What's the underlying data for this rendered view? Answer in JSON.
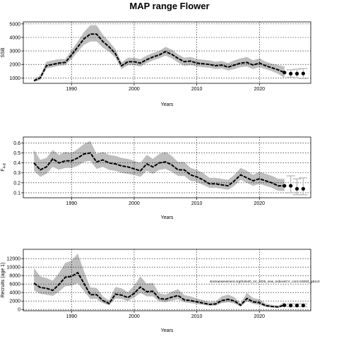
{
  "title": "MAP range Flower",
  "colors": {
    "band": "#bebebe",
    "line": "#000000",
    "grid": "#000000",
    "forecast": "#000000"
  },
  "annotation": "stockassessment.org/Sole20_24_2025_new_IndicesCV_cont.r19263_g81c0",
  "chart_data": [
    {
      "type": "line",
      "ylabel": "SSB",
      "xlabel": "Years",
      "xlim": [
        1982.3,
        2028.2
      ],
      "ylim": [
        600,
        5150
      ],
      "xticks": [
        1990,
        2000,
        2010,
        2020
      ],
      "yticks": [
        1000,
        2000,
        3000,
        4000,
        5000
      ],
      "grid": true,
      "x": [
        1984,
        1985,
        1986,
        1987,
        1988,
        1989,
        1990,
        1991,
        1992,
        1993,
        1994,
        1995,
        1996,
        1997,
        1998,
        1999,
        2000,
        2001,
        2002,
        2003,
        2004,
        2005,
        2006,
        2007,
        2008,
        2009,
        2010,
        2011,
        2012,
        2013,
        2014,
        2015,
        2016,
        2017,
        2018,
        2019,
        2020,
        2021,
        2022,
        2023,
        2024
      ],
      "series": [
        {
          "role": "estimate",
          "values": [
            800,
            1000,
            1900,
            2000,
            2100,
            2150,
            2700,
            3300,
            3900,
            4250,
            4250,
            3700,
            3300,
            2800,
            1900,
            2200,
            2200,
            2100,
            2350,
            2550,
            2700,
            2950,
            2750,
            2450,
            2200,
            2250,
            2100,
            2050,
            2000,
            1900,
            1950,
            1800,
            1950,
            2100,
            2150,
            1950,
            2100,
            1900,
            1750,
            1600,
            1400
          ]
        },
        {
          "role": "lower",
          "values": [
            700,
            850,
            1700,
            1800,
            1900,
            1950,
            2400,
            2950,
            3450,
            3700,
            3700,
            3250,
            2950,
            2500,
            1650,
            1950,
            1950,
            1850,
            2100,
            2300,
            2450,
            2650,
            2450,
            2150,
            1900,
            1950,
            1850,
            1800,
            1750,
            1650,
            1700,
            1550,
            1650,
            1800,
            1850,
            1650,
            1800,
            1650,
            1500,
            1300,
            1000
          ]
        },
        {
          "role": "upper",
          "values": [
            900,
            1200,
            2200,
            2300,
            2400,
            2400,
            3050,
            3700,
            4400,
            4900,
            4900,
            4200,
            3700,
            3150,
            2150,
            2500,
            2500,
            2400,
            2650,
            2850,
            3000,
            3300,
            3100,
            2750,
            2500,
            2550,
            2400,
            2350,
            2300,
            2200,
            2250,
            2100,
            2300,
            2450,
            2550,
            2300,
            2450,
            2200,
            2050,
            1950,
            1850
          ]
        },
        {
          "role": "forecast",
          "x": [
            2024,
            2025,
            2026,
            2027
          ],
          "values": [
            1400,
            1320,
            1320,
            1330
          ],
          "lower": [
            1300,
            1050,
            1000,
            950
          ],
          "upper": [
            1550,
            1600,
            1650,
            1700
          ]
        }
      ]
    },
    {
      "type": "line",
      "ylabel": "F",
      "ylabel_sub": "4-8",
      "xlabel": "Years",
      "xlim": [
        1982.3,
        2028.2
      ],
      "ylim": [
        0.05,
        0.66
      ],
      "xticks": [
        1990,
        2000,
        2010,
        2020
      ],
      "yticks": [
        0.1,
        0.2,
        0.3,
        0.4,
        0.5,
        0.6
      ],
      "grid": true,
      "x": [
        1984,
        1985,
        1986,
        1987,
        1988,
        1989,
        1990,
        1991,
        1992,
        1993,
        1994,
        1995,
        1996,
        1997,
        1998,
        1999,
        2000,
        2001,
        2002,
        2003,
        2004,
        2005,
        2006,
        2007,
        2008,
        2009,
        2010,
        2011,
        2012,
        2013,
        2014,
        2015,
        2016,
        2017,
        2018,
        2019,
        2020,
        2021,
        2022,
        2023,
        2024
      ],
      "series": [
        {
          "role": "estimate",
          "values": [
            0.4,
            0.33,
            0.36,
            0.44,
            0.4,
            0.42,
            0.42,
            0.45,
            0.49,
            0.5,
            0.41,
            0.43,
            0.4,
            0.39,
            0.37,
            0.36,
            0.34,
            0.32,
            0.39,
            0.36,
            0.4,
            0.41,
            0.38,
            0.33,
            0.33,
            0.28,
            0.26,
            0.23,
            0.19,
            0.19,
            0.18,
            0.17,
            0.22,
            0.28,
            0.25,
            0.22,
            0.24,
            0.22,
            0.2,
            0.17,
            0.17
          ]
        },
        {
          "role": "lower",
          "values": [
            0.32,
            0.26,
            0.29,
            0.36,
            0.33,
            0.35,
            0.35,
            0.37,
            0.41,
            0.42,
            0.34,
            0.36,
            0.33,
            0.32,
            0.3,
            0.29,
            0.28,
            0.26,
            0.32,
            0.29,
            0.33,
            0.34,
            0.31,
            0.27,
            0.27,
            0.22,
            0.21,
            0.18,
            0.15,
            0.15,
            0.14,
            0.13,
            0.17,
            0.23,
            0.2,
            0.17,
            0.19,
            0.17,
            0.15,
            0.12,
            0.12
          ]
        },
        {
          "role": "upper",
          "values": [
            0.53,
            0.43,
            0.45,
            0.53,
            0.48,
            0.51,
            0.5,
            0.54,
            0.59,
            0.62,
            0.49,
            0.51,
            0.48,
            0.47,
            0.45,
            0.44,
            0.42,
            0.4,
            0.48,
            0.44,
            0.49,
            0.51,
            0.47,
            0.41,
            0.41,
            0.35,
            0.33,
            0.3,
            0.25,
            0.25,
            0.24,
            0.23,
            0.28,
            0.35,
            0.32,
            0.28,
            0.31,
            0.29,
            0.27,
            0.24,
            0.24
          ]
        },
        {
          "role": "forecast",
          "x": [
            2024,
            2025,
            2026,
            2027
          ],
          "values": [
            0.17,
            0.17,
            0.14,
            0.14
          ],
          "lower": [
            0.13,
            0.1,
            0.08,
            0.08
          ],
          "upper": [
            0.22,
            0.27,
            0.24,
            0.25
          ]
        }
      ]
    },
    {
      "type": "line",
      "ylabel": "Recruits (age 1)",
      "xlabel": "Years",
      "xlim": [
        1982.3,
        2028.2
      ],
      "ylim": [
        -300,
        14200
      ],
      "xticks": [
        1990,
        2000,
        2010,
        2020
      ],
      "yticks": [
        0,
        2000,
        4000,
        6000,
        8000,
        10000,
        12000
      ],
      "grid": true,
      "x": [
        1984,
        1985,
        1986,
        1987,
        1988,
        1989,
        1990,
        1991,
        1992,
        1993,
        1994,
        1995,
        1996,
        1997,
        1998,
        1999,
        2000,
        2001,
        2002,
        2003,
        2004,
        2005,
        2006,
        2007,
        2008,
        2009,
        2010,
        2011,
        2012,
        2013,
        2014,
        2015,
        2016,
        2017,
        2018,
        2019,
        2020,
        2021,
        2022,
        2023,
        2024
      ],
      "series": [
        {
          "role": "estimate",
          "values": [
            6200,
            5200,
            5000,
            4500,
            5900,
            7600,
            7800,
            8700,
            6100,
            3500,
            3500,
            2100,
            1400,
            3600,
            3400,
            2800,
            3800,
            5300,
            4200,
            4300,
            2600,
            2400,
            2900,
            3300,
            2300,
            2100,
            1800,
            1500,
            1200,
            1300,
            2100,
            2400,
            2000,
            1000,
            2600,
            1800,
            1600,
            900,
            700,
            600,
            1000
          ]
        },
        {
          "role": "lower",
          "values": [
            4500,
            3700,
            3500,
            3200,
            4200,
            5500,
            5600,
            6200,
            4300,
            2500,
            2500,
            1500,
            1000,
            2600,
            2500,
            2000,
            2800,
            3900,
            3100,
            3100,
            1900,
            1700,
            2100,
            2400,
            1700,
            1500,
            1300,
            1100,
            900,
            900,
            1500,
            1700,
            1400,
            700,
            1900,
            1300,
            1100,
            600,
            500,
            400,
            700
          ]
        },
        {
          "role": "upper",
          "values": [
            9800,
            7800,
            7400,
            6800,
            8600,
            11000,
            11500,
            13200,
            9000,
            5200,
            5100,
            3100,
            2100,
            5300,
            5000,
            4100,
            5600,
            7800,
            6100,
            6300,
            3800,
            3500,
            4200,
            4800,
            3400,
            3100,
            2600,
            2200,
            1800,
            1900,
            3100,
            3500,
            2900,
            1500,
            3900,
            2700,
            2400,
            1400,
            1100,
            900,
            1700
          ]
        },
        {
          "role": "forecast",
          "x": [
            2024,
            2025,
            2026,
            2027
          ],
          "values": [
            1000,
            950,
            950,
            950
          ],
          "lower": [
            700,
            650,
            650,
            650
          ],
          "upper": [
            1700,
            1300,
            1300,
            1300
          ]
        }
      ]
    }
  ]
}
